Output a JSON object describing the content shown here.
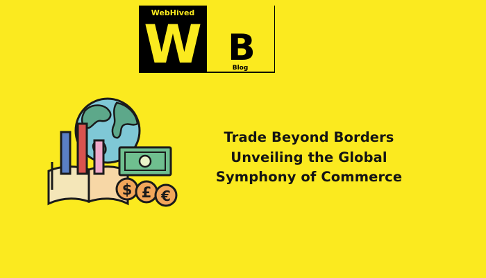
{
  "logo": {
    "brand_text": "WebHived",
    "w_letter": "W",
    "b_letter": "B",
    "blog_text": "Blog"
  },
  "headline": {
    "lines": [
      "Trade Beyond Borders",
      "Unveiling the Global",
      "Symphony of Commerce"
    ]
  },
  "illustration": {
    "coin_symbols": [
      "$",
      "£",
      "€"
    ]
  },
  "colors": {
    "background": "#fbea1f",
    "logo_black": "#000000",
    "text": "#141414",
    "globe_blue": "#7fc8d6",
    "globe_green": "#5da88a",
    "banknote_green": "#6fbf8f",
    "coin_orange": "#f2a65a",
    "bar_blue": "#5a7fc4",
    "bar_red": "#d9534f",
    "bar_pink": "#f0a8c8"
  }
}
